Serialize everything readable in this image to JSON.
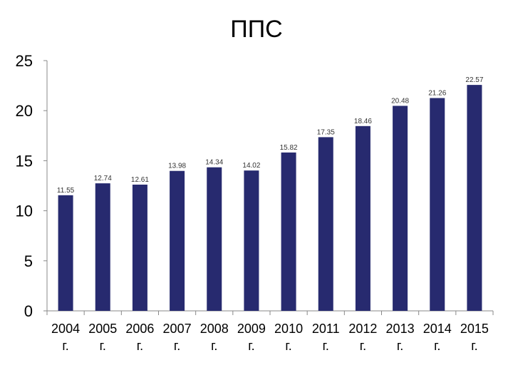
{
  "chart_data": {
    "type": "bar",
    "title": "ППС",
    "categories": [
      "2004 г.",
      "2005 г.",
      "2006 г.",
      "2007 г.",
      "2008 г.",
      "2009 г.",
      "2010 г.",
      "2011 г.",
      "2012 г.",
      "2013 г.",
      "2014 г.",
      "2015 г."
    ],
    "values": [
      11.55,
      12.74,
      12.61,
      13.98,
      14.34,
      14.02,
      15.82,
      17.35,
      18.46,
      20.48,
      21.26,
      22.57
    ],
    "data_labels": [
      "11.55",
      "12.74",
      "12.61",
      "13.98",
      "14.34",
      "14.02",
      "15.82",
      "17.35",
      "18.46",
      "20.48",
      "21.26",
      "22.57"
    ],
    "yticks": [
      0,
      5,
      10,
      15,
      20,
      25
    ],
    "ylim": [
      0,
      25
    ],
    "xlabel": "",
    "ylabel": "",
    "grid": false,
    "legend": "none",
    "bar_color": "#272a6f"
  }
}
